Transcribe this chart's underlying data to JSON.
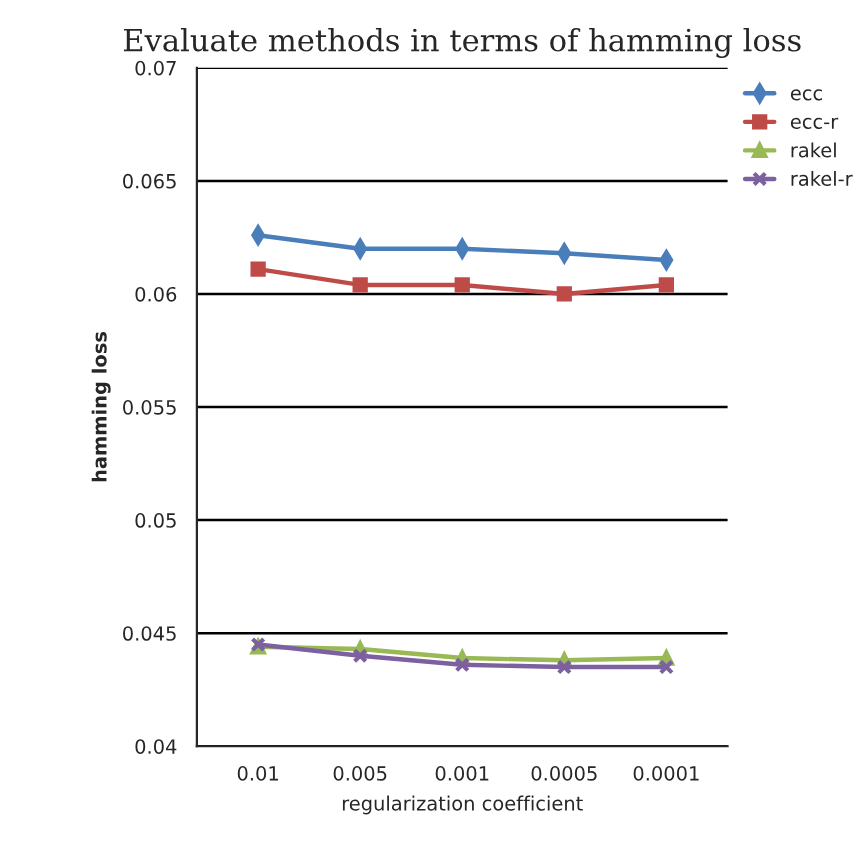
{
  "chart_data": {
    "type": "line",
    "title": "Evaluate methods in terms of hamming loss",
    "xlabel": "regularization coefficient",
    "ylabel": "hamming loss",
    "categories": [
      "0.01",
      "0.005",
      "0.001",
      "0.0005",
      "0.0001"
    ],
    "series": [
      {
        "name": "ecc",
        "color": "#4a7ebb",
        "marker": "diamond",
        "values": [
          0.0626,
          0.062,
          0.062,
          0.0618,
          0.0615
        ]
      },
      {
        "name": "ecc-r",
        "color": "#be4b48",
        "marker": "square",
        "values": [
          0.0611,
          0.0604,
          0.0604,
          0.06,
          0.0604
        ]
      },
      {
        "name": "rakel",
        "color": "#98b954",
        "marker": "triangle",
        "values": [
          0.0444,
          0.0443,
          0.0439,
          0.0438,
          0.0439
        ]
      },
      {
        "name": "rakel-r",
        "color": "#7d60a0",
        "marker": "cross",
        "values": [
          0.0445,
          0.044,
          0.0436,
          0.0435,
          0.0435
        ]
      }
    ],
    "ylim": [
      0.04,
      0.07
    ],
    "yticks": [
      0.04,
      0.045,
      0.05,
      0.055,
      0.06,
      0.065,
      0.07
    ],
    "grid": "y",
    "legend": "right"
  }
}
